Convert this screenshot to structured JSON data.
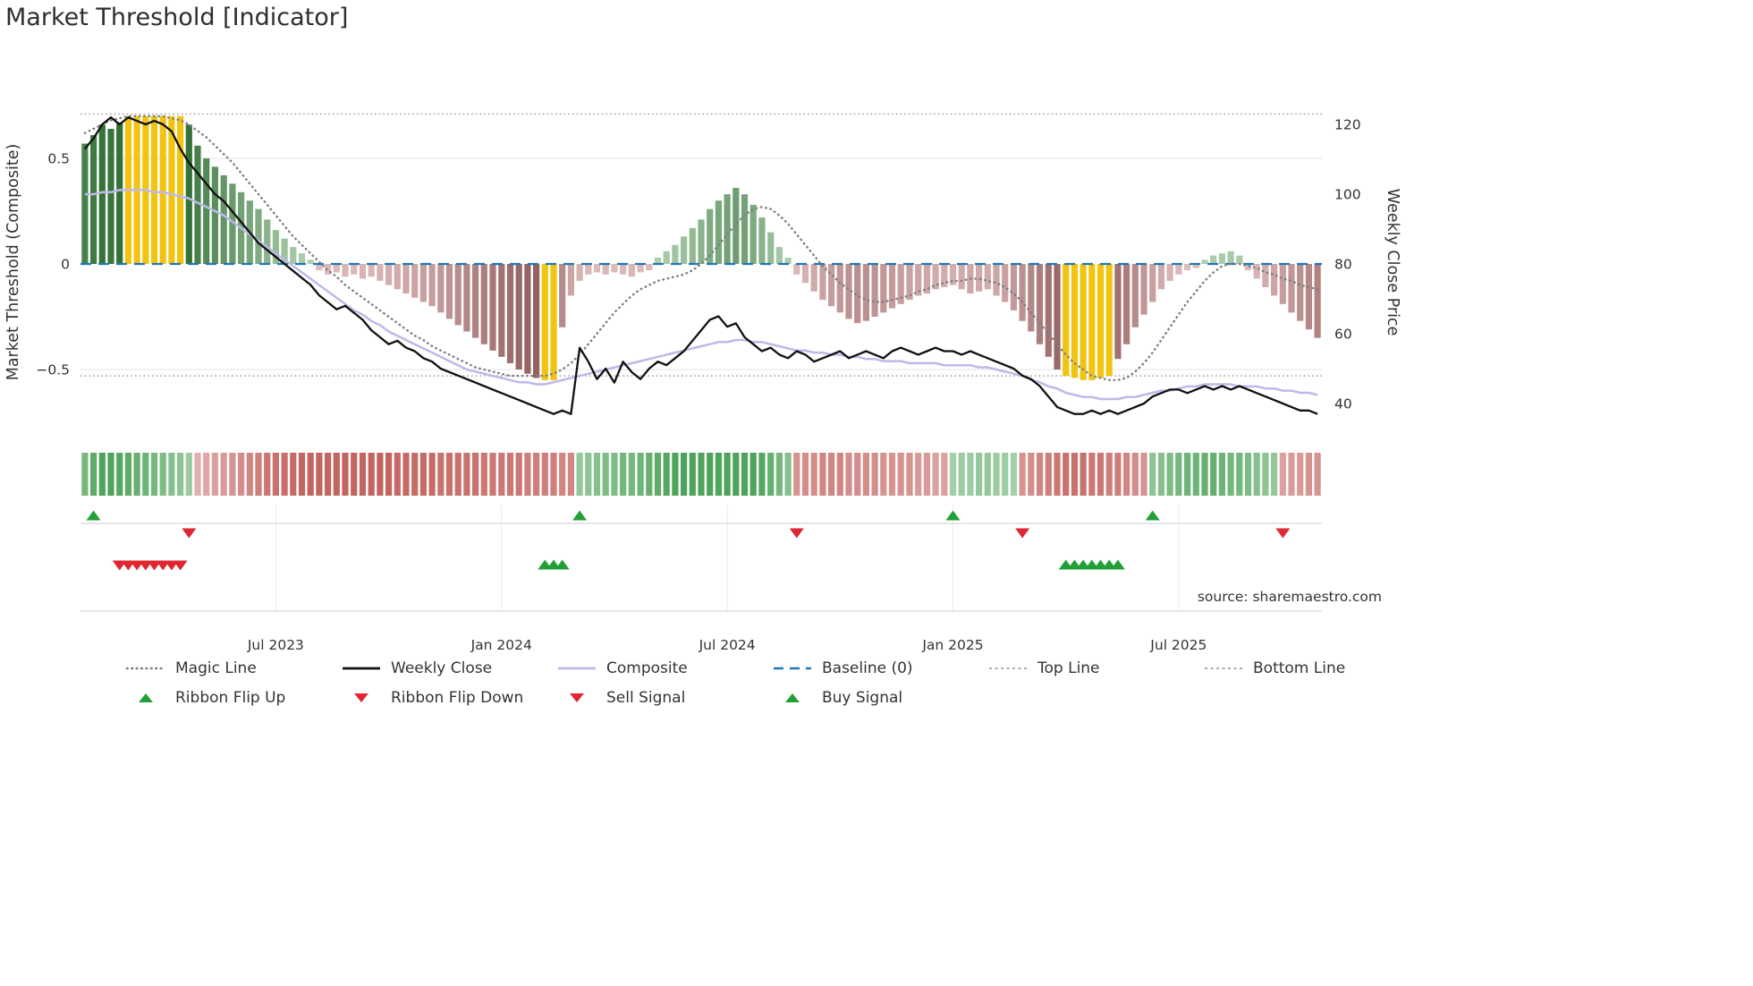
{
  "title": "Market Threshold [Indicator]",
  "source": "source: sharemaestro.com",
  "axes": {
    "left_title": "Market Threshold (Composite)",
    "right_title": "Weekly Close Price",
    "left_ticks": [
      {
        "value": 0.5,
        "label": "0.5"
      },
      {
        "value": 0,
        "label": "0"
      },
      {
        "value": -0.5,
        "label": "−0.5"
      }
    ],
    "right_ticks": [
      {
        "value": 120,
        "label": "120"
      },
      {
        "value": 100,
        "label": "100"
      },
      {
        "value": 80,
        "label": "80"
      },
      {
        "value": 60,
        "label": "60"
      },
      {
        "value": 40,
        "label": "40"
      }
    ],
    "x_ticks": [
      {
        "week": 22,
        "label": "Jul 2023"
      },
      {
        "week": 48,
        "label": "Jan 2024"
      },
      {
        "week": 74,
        "label": "Jul 2024"
      },
      {
        "week": 100,
        "label": "Jan 2025"
      },
      {
        "week": 126,
        "label": "Jul 2025"
      }
    ]
  },
  "legend": {
    "rows": [
      [
        {
          "label": "Magic Line",
          "type": "line-dotted"
        },
        {
          "label": "Weekly Close",
          "type": "line-solid-black"
        },
        {
          "label": "Composite",
          "type": "line-solid-lavender"
        },
        {
          "label": "Baseline (0)",
          "type": "line-dashed-blue"
        },
        {
          "label": "Top Line",
          "type": "line-dashed-gray"
        },
        {
          "label": "Bottom Line",
          "type": "line-dashed-gray"
        }
      ],
      [
        {
          "label": "Ribbon Flip Up",
          "type": "tri-up"
        },
        {
          "label": "Ribbon Flip Down",
          "type": "tri-down"
        },
        {
          "label": "Sell Signal",
          "type": "tri-down"
        },
        {
          "label": "Buy Signal",
          "type": "tri-up"
        }
      ]
    ]
  },
  "chart_data": {
    "type": "bar",
    "title": "Market Threshold [Indicator]",
    "frequency": "weekly",
    "n_points": 143,
    "left_ylabel": "Market Threshold (Composite)",
    "right_ylabel": "Weekly Close Price",
    "left_ylim": [
      -0.75,
      0.8
    ],
    "right_ylim": [
      30,
      130
    ],
    "baseline": 0,
    "top_line": 0.71,
    "bottom_line": -0.53,
    "grid_values_left": [
      0.5,
      -0.5
    ],
    "bars": {
      "name": "Market Threshold (Composite)",
      "values": [
        0.57,
        0.61,
        0.66,
        0.64,
        0.67,
        0.7,
        0.7,
        0.7,
        0.7,
        0.7,
        0.7,
        0.7,
        0.66,
        0.56,
        0.5,
        0.46,
        0.42,
        0.38,
        0.34,
        0.3,
        0.26,
        0.21,
        0.16,
        0.12,
        0.08,
        0.05,
        0.02,
        -0.03,
        -0.05,
        -0.04,
        -0.06,
        -0.05,
        -0.07,
        -0.06,
        -0.08,
        -0.1,
        -0.12,
        -0.14,
        -0.16,
        -0.18,
        -0.2,
        -0.23,
        -0.26,
        -0.29,
        -0.32,
        -0.35,
        -0.38,
        -0.41,
        -0.44,
        -0.47,
        -0.5,
        -0.52,
        -0.54,
        -0.55,
        -0.55,
        -0.3,
        -0.15,
        -0.08,
        -0.05,
        -0.04,
        -0.05,
        -0.04,
        -0.05,
        -0.06,
        -0.04,
        -0.03,
        0.03,
        0.06,
        0.09,
        0.13,
        0.17,
        0.21,
        0.26,
        0.3,
        0.33,
        0.36,
        0.33,
        0.28,
        0.22,
        0.15,
        0.08,
        0.03,
        -0.05,
        -0.09,
        -0.13,
        -0.17,
        -0.2,
        -0.23,
        -0.26,
        -0.28,
        -0.27,
        -0.25,
        -0.23,
        -0.21,
        -0.19,
        -0.17,
        -0.15,
        -0.14,
        -0.12,
        -0.11,
        -0.1,
        -0.12,
        -0.14,
        -0.13,
        -0.12,
        -0.15,
        -0.18,
        -0.22,
        -0.27,
        -0.32,
        -0.38,
        -0.44,
        -0.5,
        -0.53,
        -0.54,
        -0.55,
        -0.55,
        -0.54,
        -0.53,
        -0.45,
        -0.38,
        -0.3,
        -0.24,
        -0.18,
        -0.12,
        -0.08,
        -0.05,
        -0.03,
        -0.02,
        0.02,
        0.04,
        0.05,
        0.06,
        0.04,
        -0.03,
        -0.07,
        -0.11,
        -0.15,
        -0.19,
        -0.23,
        -0.27,
        -0.31,
        -0.35
      ],
      "capped_weeks": [
        5,
        6,
        7,
        8,
        9,
        10,
        11,
        53,
        54,
        113,
        114,
        115,
        116,
        117,
        118
      ]
    },
    "series": [
      {
        "name": "Magic Line",
        "axis": "left",
        "values": [
          0.62,
          0.64,
          0.66,
          0.68,
          0.69,
          0.7,
          0.7,
          0.7,
          0.7,
          0.7,
          0.69,
          0.68,
          0.66,
          0.63,
          0.6,
          0.56,
          0.52,
          0.48,
          0.43,
          0.38,
          0.33,
          0.28,
          0.23,
          0.18,
          0.13,
          0.09,
          0.05,
          0.01,
          -0.03,
          -0.06,
          -0.1,
          -0.13,
          -0.16,
          -0.19,
          -0.22,
          -0.25,
          -0.28,
          -0.31,
          -0.34,
          -0.36,
          -0.39,
          -0.41,
          -0.43,
          -0.45,
          -0.47,
          -0.49,
          -0.5,
          -0.51,
          -0.52,
          -0.53,
          -0.53,
          -0.53,
          -0.53,
          -0.53,
          -0.52,
          -0.5,
          -0.47,
          -0.43,
          -0.38,
          -0.33,
          -0.28,
          -0.23,
          -0.19,
          -0.15,
          -0.12,
          -0.1,
          -0.08,
          -0.07,
          -0.06,
          -0.05,
          -0.03,
          0.0,
          0.04,
          0.09,
          0.14,
          0.19,
          0.23,
          0.26,
          0.27,
          0.26,
          0.23,
          0.19,
          0.14,
          0.09,
          0.04,
          -0.01,
          -0.05,
          -0.09,
          -0.12,
          -0.15,
          -0.17,
          -0.18,
          -0.18,
          -0.17,
          -0.16,
          -0.15,
          -0.13,
          -0.12,
          -0.1,
          -0.09,
          -0.08,
          -0.08,
          -0.07,
          -0.07,
          -0.08,
          -0.09,
          -0.11,
          -0.14,
          -0.18,
          -0.23,
          -0.28,
          -0.33,
          -0.38,
          -0.43,
          -0.47,
          -0.5,
          -0.53,
          -0.54,
          -0.55,
          -0.55,
          -0.54,
          -0.51,
          -0.47,
          -0.42,
          -0.36,
          -0.3,
          -0.24,
          -0.18,
          -0.13,
          -0.08,
          -0.04,
          -0.01,
          0.0,
          0.0,
          -0.01,
          -0.02,
          -0.04,
          -0.05,
          -0.07,
          -0.08,
          -0.1,
          -0.11,
          -0.12
        ]
      },
      {
        "name": "Weekly Close",
        "axis": "right",
        "values": [
          113,
          116,
          120,
          122,
          120,
          122,
          121,
          120,
          121,
          120,
          118,
          113,
          109,
          106,
          103,
          100,
          98,
          95,
          92,
          89,
          86,
          84,
          82,
          80,
          78,
          76,
          74,
          71,
          69,
          67,
          68,
          66,
          64,
          61,
          59,
          57,
          58,
          56,
          55,
          53,
          52,
          50,
          49,
          48,
          47,
          46,
          45,
          44,
          43,
          42,
          41,
          40,
          39,
          38,
          37,
          38,
          37,
          56,
          52,
          47,
          50,
          46,
          52,
          49,
          47,
          50,
          52,
          51,
          53,
          55,
          58,
          61,
          64,
          65,
          62,
          63,
          59,
          57,
          55,
          56,
          54,
          53,
          55,
          54,
          52,
          53,
          54,
          55,
          53,
          54,
          55,
          54,
          53,
          55,
          56,
          55,
          54,
          55,
          56,
          55,
          55,
          54,
          55,
          54,
          53,
          52,
          51,
          50,
          48,
          47,
          45,
          42,
          39,
          38,
          37,
          37,
          38,
          37,
          38,
          37,
          38,
          39,
          40,
          42,
          43,
          44,
          44,
          43,
          44,
          45,
          44,
          45,
          44,
          45,
          44,
          43,
          42,
          41,
          40,
          39,
          38,
          38,
          37
        ]
      },
      {
        "name": "Composite",
        "axis": "left",
        "values": [
          0.33,
          0.33,
          0.34,
          0.34,
          0.35,
          0.35,
          0.35,
          0.35,
          0.34,
          0.34,
          0.33,
          0.32,
          0.31,
          0.29,
          0.27,
          0.25,
          0.23,
          0.2,
          0.17,
          0.14,
          0.11,
          0.08,
          0.05,
          0.02,
          -0.01,
          -0.04,
          -0.07,
          -0.1,
          -0.13,
          -0.16,
          -0.19,
          -0.22,
          -0.24,
          -0.27,
          -0.29,
          -0.32,
          -0.34,
          -0.36,
          -0.38,
          -0.4,
          -0.42,
          -0.44,
          -0.46,
          -0.48,
          -0.5,
          -0.51,
          -0.52,
          -0.53,
          -0.54,
          -0.55,
          -0.56,
          -0.56,
          -0.57,
          -0.57,
          -0.56,
          -0.55,
          -0.54,
          -0.53,
          -0.52,
          -0.51,
          -0.5,
          -0.49,
          -0.48,
          -0.47,
          -0.46,
          -0.45,
          -0.44,
          -0.43,
          -0.42,
          -0.41,
          -0.4,
          -0.39,
          -0.38,
          -0.37,
          -0.37,
          -0.36,
          -0.36,
          -0.37,
          -0.37,
          -0.38,
          -0.39,
          -0.4,
          -0.41,
          -0.41,
          -0.42,
          -0.42,
          -0.43,
          -0.43,
          -0.44,
          -0.44,
          -0.45,
          -0.45,
          -0.46,
          -0.46,
          -0.46,
          -0.47,
          -0.47,
          -0.47,
          -0.47,
          -0.48,
          -0.48,
          -0.48,
          -0.48,
          -0.49,
          -0.49,
          -0.5,
          -0.51,
          -0.52,
          -0.53,
          -0.55,
          -0.56,
          -0.58,
          -0.59,
          -0.61,
          -0.62,
          -0.63,
          -0.63,
          -0.64,
          -0.64,
          -0.64,
          -0.63,
          -0.63,
          -0.62,
          -0.61,
          -0.6,
          -0.6,
          -0.59,
          -0.58,
          -0.58,
          -0.57,
          -0.57,
          -0.57,
          -0.57,
          -0.58,
          -0.58,
          -0.58,
          -0.59,
          -0.59,
          -0.6,
          -0.6,
          -0.61,
          -0.61,
          -0.62
        ]
      }
    ],
    "ribbon": [
      0.55,
      0.7,
      0.8,
      0.8,
      0.75,
      0.7,
      0.65,
      0.6,
      0.55,
      0.5,
      0.45,
      0.4,
      0.3,
      -0.25,
      -0.3,
      -0.35,
      -0.4,
      -0.45,
      -0.5,
      -0.55,
      -0.6,
      -0.65,
      -0.7,
      -0.72,
      -0.75,
      -0.8,
      -0.8,
      -0.8,
      -0.8,
      -0.8,
      -0.8,
      -0.8,
      -0.8,
      -0.8,
      -0.8,
      -0.8,
      -0.75,
      -0.75,
      -0.75,
      -0.75,
      -0.75,
      -0.7,
      -0.7,
      -0.7,
      -0.7,
      -0.7,
      -0.65,
      -0.65,
      -0.65,
      -0.65,
      -0.65,
      -0.6,
      -0.6,
      -0.6,
      -0.6,
      -0.55,
      -0.55,
      0.35,
      0.4,
      0.45,
      0.5,
      0.5,
      0.55,
      0.55,
      0.6,
      0.65,
      0.7,
      0.75,
      0.8,
      0.8,
      0.8,
      0.8,
      0.8,
      0.8,
      0.8,
      0.8,
      0.8,
      0.8,
      0.75,
      0.65,
      0.55,
      0.45,
      -0.45,
      -0.5,
      -0.5,
      -0.55,
      -0.55,
      -0.55,
      -0.5,
      -0.5,
      -0.5,
      -0.5,
      -0.45,
      -0.45,
      -0.45,
      -0.45,
      -0.4,
      -0.4,
      -0.35,
      -0.35,
      0.25,
      0.3,
      0.3,
      0.35,
      0.35,
      0.3,
      0.3,
      0.25,
      -0.45,
      -0.5,
      -0.55,
      -0.6,
      -0.65,
      -0.7,
      -0.7,
      -0.7,
      -0.65,
      -0.65,
      -0.6,
      -0.6,
      -0.55,
      -0.5,
      -0.45,
      0.4,
      0.45,
      0.5,
      0.55,
      0.6,
      0.6,
      0.65,
      0.65,
      0.6,
      0.55,
      0.55,
      0.5,
      0.45,
      0.4,
      0.35,
      -0.35,
      -0.4,
      -0.4,
      -0.45,
      -0.45
    ],
    "signals": {
      "ribbon_flip_up_weeks": [
        1,
        57,
        100,
        123
      ],
      "ribbon_flip_down_weeks": [
        12,
        82,
        108,
        138
      ],
      "buy_signal_weeks": [
        53,
        54,
        55,
        113,
        114,
        115,
        116,
        117,
        118,
        119
      ],
      "sell_signal_weeks": [
        4,
        5,
        6,
        7,
        8,
        9,
        10,
        11
      ]
    }
  },
  "colors": {
    "baseline_blue": "#2077b4",
    "weekly_close_black": "#111111",
    "composite_lavender": "#bdb9e9",
    "magic_gray": "#7f7f7f",
    "guide_gray": "#909090",
    "cap_yellow": "#f2c412",
    "bar_green_light": "#cfe8cf",
    "bar_green_dark": "#2e6d32",
    "bar_red_light": "#f5d6d6",
    "bar_red_dark": "#8f5a5a",
    "ribbon_green_light": "#e1f0e2",
    "ribbon_green_dark": "#4ea45a",
    "ribbon_red_light": "#f9e4e4",
    "ribbon_red_dark": "#c26460",
    "signal_green": "#21a038",
    "signal_red": "#e02631",
    "grid": "#e4e4e4",
    "panel_line": "#cccccc",
    "panel_grid": "#ebebeb",
    "source_gray": "#9a9a9a"
  }
}
